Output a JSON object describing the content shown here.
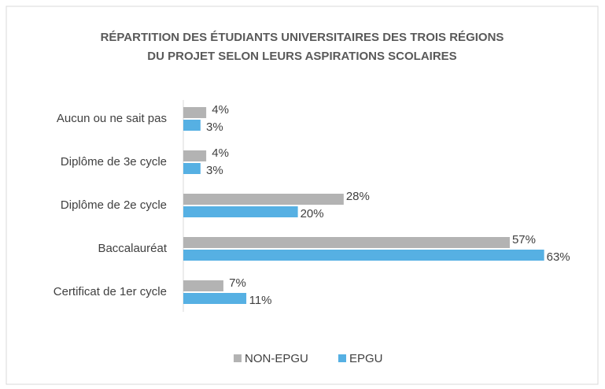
{
  "chart_data": {
    "type": "bar",
    "orientation": "horizontal",
    "title": [
      "RÉPARTITION DES ÉTUDIANTS UNIVERSITAIRES DES TROIS RÉGIONS",
      "DU PROJET SELON LEURS ASPIRATIONS SCOLAIRES"
    ],
    "categories": [
      "Aucun ou ne sait pas",
      "Diplôme de 3e cycle",
      "Diplôme de 2e cycle",
      "Baccalauréat",
      "Certificat de 1er cycle"
    ],
    "series": [
      {
        "name": "NON-EPGU",
        "color": "#b3b3b3",
        "values": [
          4,
          4,
          28,
          57,
          7
        ],
        "value_labels": [
          "4%",
          "4%",
          "28%",
          "57%",
          "7%"
        ]
      },
      {
        "name": "EPGU",
        "color": "#56b0e3",
        "values": [
          3,
          3,
          20,
          63,
          11
        ],
        "value_labels": [
          "3%",
          "3%",
          "20%",
          "63%",
          "11%"
        ]
      }
    ],
    "legend": "bottom"
  }
}
